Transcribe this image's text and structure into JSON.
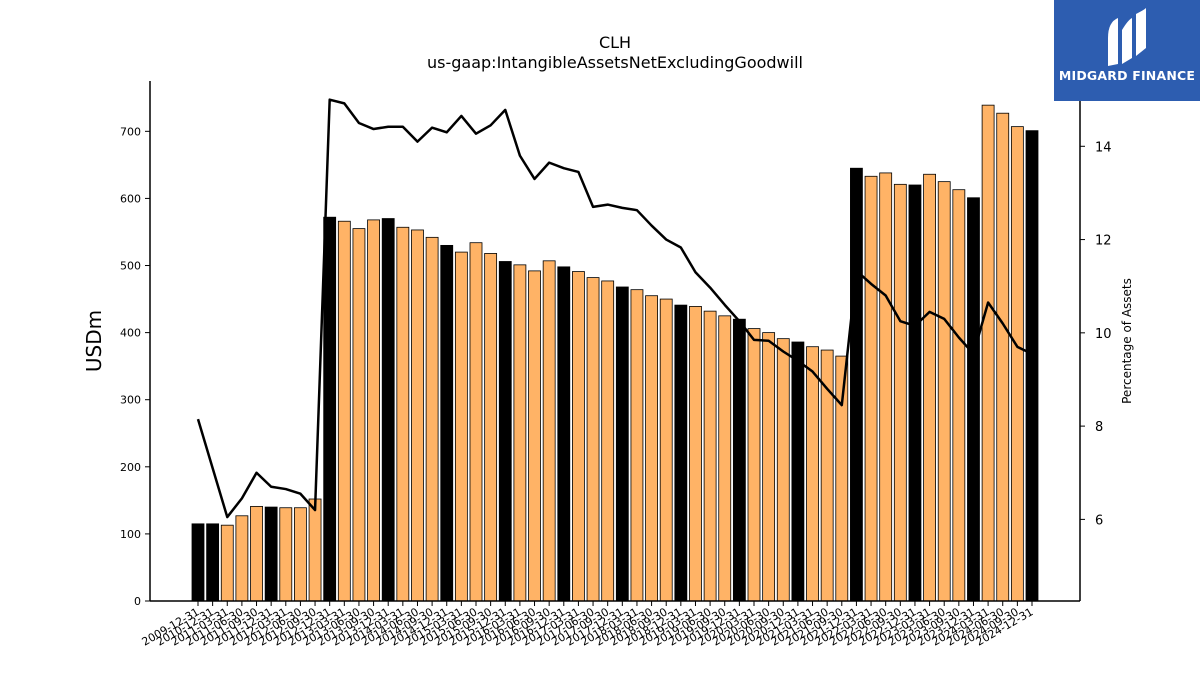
{
  "chart_data": {
    "type": "bar",
    "title": "CLH",
    "subtitle": "us-gaap:IntangibleAssetsNetExcludingGoodwill",
    "ylabel": "USDm",
    "y2label": "Percentage of Assets",
    "ylim": [
      0,
      775
    ],
    "y2lim": [
      4.25,
      15.4
    ],
    "yticks": [
      0,
      100,
      200,
      300,
      400,
      500,
      600,
      700
    ],
    "y2ticks": [
      6,
      8,
      10,
      12,
      14
    ],
    "categories": [
      "2009-12-31",
      "2010-12-31",
      "2011-03-31",
      "2011-06-30",
      "2011-09-30",
      "2011-12-31",
      "2012-03-31",
      "2012-06-30",
      "2012-09-30",
      "2012-12-31",
      "2013-03-31",
      "2013-06-30",
      "2013-09-30",
      "2013-12-31",
      "2014-03-31",
      "2014-06-30",
      "2014-09-30",
      "2014-12-31",
      "2015-03-31",
      "2015-06-30",
      "2015-09-30",
      "2015-12-31",
      "2016-03-31",
      "2016-06-30",
      "2016-09-30",
      "2016-12-31",
      "2017-03-31",
      "2017-06-30",
      "2017-09-30",
      "2017-12-31",
      "2018-03-31",
      "2018-06-30",
      "2018-09-30",
      "2018-12-31",
      "2019-03-31",
      "2019-06-30",
      "2019-09-30",
      "2019-12-31",
      "2020-03-31",
      "2020-06-30",
      "2020-09-30",
      "2020-12-31",
      "2021-03-31",
      "2021-06-30",
      "2021-09-30",
      "2021-12-31",
      "2022-03-31",
      "2022-06-30",
      "2022-09-30",
      "2022-12-31",
      "2023-03-31",
      "2023-06-30",
      "2023-09-30",
      "2023-12-31",
      "2024-03-31",
      "2024-06-30",
      "2024-09-30",
      "2024-12-31"
    ],
    "series": [
      {
        "type": "bar",
        "values": [
          115,
          115,
          113,
          127,
          141,
          140,
          139,
          139,
          152,
          572,
          566,
          555,
          568,
          570,
          557,
          553,
          542,
          530,
          520,
          534,
          518,
          506,
          501,
          492,
          507,
          498,
          491,
          482,
          477,
          468,
          464,
          455,
          450,
          441,
          439,
          432,
          425,
          420,
          406,
          400,
          391,
          386,
          379,
          374,
          365,
          645,
          633,
          638,
          621,
          620,
          636,
          625,
          613,
          601,
          739,
          727,
          707,
          701
        ],
        "highlight": [
          true,
          true,
          false,
          false,
          false,
          true,
          false,
          false,
          false,
          true,
          false,
          false,
          false,
          true,
          false,
          false,
          false,
          true,
          false,
          false,
          false,
          true,
          false,
          false,
          false,
          true,
          false,
          false,
          false,
          true,
          false,
          false,
          false,
          true,
          false,
          false,
          false,
          true,
          false,
          false,
          false,
          true,
          false,
          false,
          false,
          true,
          false,
          false,
          false,
          true,
          false,
          false,
          false,
          true,
          false,
          false,
          false,
          true
        ]
      },
      {
        "type": "line",
        "axis": "right",
        "values": [
          8.15,
          7.1,
          6.05,
          6.45,
          7.0,
          6.7,
          6.65,
          6.55,
          6.2,
          15.0,
          14.92,
          14.5,
          14.37,
          14.42,
          14.42,
          14.1,
          14.4,
          14.3,
          14.65,
          14.27,
          14.45,
          14.78,
          13.8,
          13.3,
          13.65,
          13.53,
          13.45,
          12.7,
          12.75,
          12.68,
          12.63,
          12.3,
          12.0,
          11.83,
          11.3,
          10.97,
          10.6,
          10.25,
          9.85,
          9.83,
          9.6,
          9.4,
          9.17,
          8.8,
          8.45,
          11.33,
          11.05,
          10.8,
          10.25,
          10.15,
          10.45,
          10.3,
          9.9,
          9.55,
          10.65,
          10.2,
          9.7,
          9.55
        ]
      }
    ],
    "colors": {
      "bar": "#ffb366",
      "bar_highlight": "#000000",
      "line": "#000000",
      "logo_bg": "#2d5db0"
    }
  },
  "logo": {
    "text": "MIDGARD FINANCE",
    "icon": "midgard-logo-icon"
  }
}
